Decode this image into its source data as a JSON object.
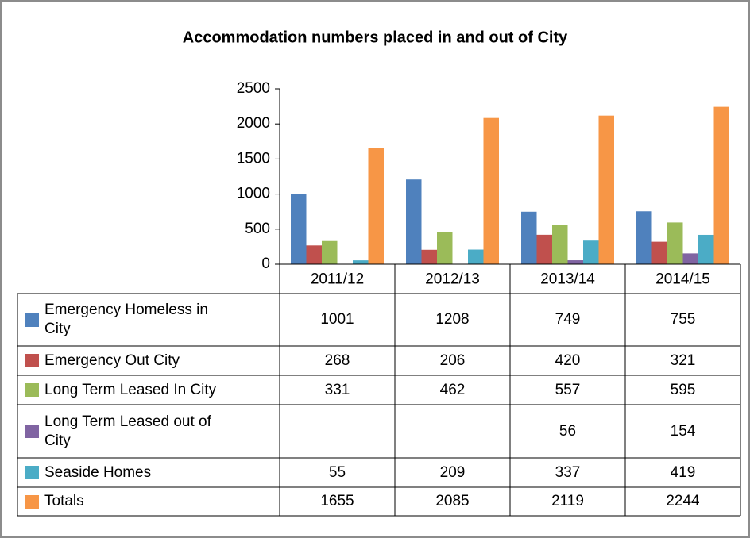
{
  "chart_data": {
    "type": "bar",
    "title": "Accommodation numbers placed in and out of City",
    "categories": [
      "2011/12",
      "2012/13",
      "2013/14",
      "2014/15"
    ],
    "series": [
      {
        "name": "Emergency Homeless in City",
        "color": "#4f81bd",
        "values": [
          1001,
          1208,
          749,
          755
        ]
      },
      {
        "name": "Emergency Out City",
        "color": "#c0504d",
        "values": [
          268,
          206,
          420,
          321
        ]
      },
      {
        "name": "Long Term Leased In City",
        "color": "#9bbb59",
        "values": [
          331,
          462,
          557,
          595
        ]
      },
      {
        "name": "Long Term Leased out of City",
        "color": "#8064a2",
        "values": [
          null,
          null,
          56,
          154
        ]
      },
      {
        "name": "Seaside Homes",
        "color": "#4bacc6",
        "values": [
          55,
          209,
          337,
          419
        ]
      },
      {
        "name": "Totals",
        "color": "#f79646",
        "values": [
          1655,
          2085,
          2119,
          2244
        ]
      }
    ],
    "ylim": [
      0,
      2500
    ],
    "yticks": [
      0,
      500,
      1000,
      1500,
      2000,
      2500
    ],
    "grid": false,
    "legend": "table"
  }
}
